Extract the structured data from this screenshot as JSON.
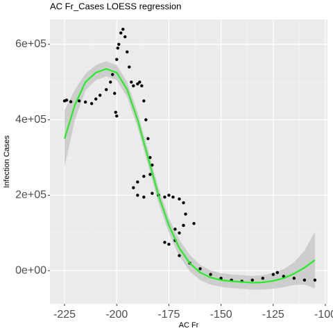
{
  "chart_data": {
    "type": "scatter",
    "title": "AC Fr_Cases LOESS regression",
    "xlabel": "AC Fr",
    "ylabel": "Infection Cases",
    "xlim": [
      -232,
      -99
    ],
    "ylim": [
      -88000,
      666000
    ],
    "xticks": [
      -225,
      -200,
      -175,
      -150,
      -125,
      -100
    ],
    "yticks": [
      {
        "value": 0,
        "label": "0e+00"
      },
      {
        "value": 200000,
        "label": "2e+05"
      },
      {
        "value": 400000,
        "label": "4e+05"
      },
      {
        "value": 600000,
        "label": "6e+05"
      }
    ],
    "grid": true,
    "point_color": "#000000",
    "x": [
      -225,
      -224,
      -222,
      -218,
      -215,
      -212,
      -210,
      -208,
      -205,
      -203,
      -202,
      -201,
      -200.5,
      -200,
      -200,
      -199.5,
      -199,
      -198,
      -197,
      -196,
      -195,
      -194,
      -193,
      -192,
      -190,
      -189,
      -188,
      -187,
      -186,
      -185,
      -184,
      -183,
      -184,
      -187,
      -190,
      -192,
      -190,
      -187,
      -183,
      -180,
      -177,
      -175,
      -173,
      -170,
      -168,
      -167,
      -168,
      -170,
      -172,
      -175,
      -177,
      -172,
      -168,
      -163,
      -170,
      -165,
      -160,
      -155,
      -150,
      -145,
      -140,
      -135,
      -130,
      -125,
      -123,
      -120,
      -115,
      -110,
      -105
    ],
    "y": [
      450000,
      452000,
      448000,
      450000,
      447000,
      443000,
      455000,
      465000,
      480000,
      500000,
      520000,
      470000,
      420000,
      410000,
      560000,
      590000,
      600000,
      630000,
      640000,
      620000,
      580000,
      540000,
      500000,
      490000,
      495000,
      500000,
      490000,
      450000,
      400000,
      350000,
      300000,
      280000,
      255000,
      250000,
      235000,
      220000,
      200000,
      195000,
      205000,
      200000,
      195000,
      200000,
      195000,
      190000,
      180000,
      150000,
      120000,
      100000,
      80000,
      70000,
      75000,
      110000,
      120000,
      125000,
      40000,
      20000,
      5000,
      -10000,
      -20000,
      -25000,
      -28000,
      -25000,
      -20000,
      -10000,
      -5000,
      -15000,
      -20000,
      -25000,
      -25000
    ],
    "fit": {
      "color": "#22ee22",
      "x": [
        -225,
        -220,
        -215,
        -210,
        -205,
        -200,
        -195,
        -190,
        -185,
        -180,
        -175,
        -170,
        -165,
        -160,
        -155,
        -150,
        -145,
        -140,
        -135,
        -130,
        -125,
        -120,
        -115,
        -110,
        -105
      ],
      "values": [
        350000,
        440000,
        500000,
        525000,
        535000,
        525000,
        480000,
        400000,
        300000,
        200000,
        120000,
        60000,
        20000,
        -5000,
        -18000,
        -25000,
        -28000,
        -30000,
        -32000,
        -31000,
        -27000,
        -20000,
        -8000,
        8000,
        28000
      ]
    },
    "band": {
      "color": "#c8c8c8",
      "x": [
        -225,
        -220,
        -215,
        -210,
        -205,
        -200,
        -195,
        -190,
        -185,
        -180,
        -175,
        -170,
        -165,
        -160,
        -155,
        -150,
        -145,
        -140,
        -135,
        -130,
        -125,
        -120,
        -115,
        -110,
        -105
      ],
      "lower": [
        275000,
        400000,
        478000,
        505000,
        515000,
        505000,
        460000,
        380000,
        280000,
        180000,
        100000,
        38000,
        -2000,
        -25000,
        -37000,
        -43000,
        -46000,
        -48000,
        -50000,
        -50000,
        -48000,
        -44000,
        -38000,
        -37000,
        -47000
      ],
      "upper": [
        425000,
        480000,
        522000,
        545000,
        555000,
        545000,
        500000,
        420000,
        320000,
        220000,
        140000,
        82000,
        42000,
        15000,
        1000,
        -7000,
        -10000,
        -12000,
        -14000,
        -12000,
        -6000,
        4000,
        22000,
        53000,
        103000
      ]
    }
  }
}
